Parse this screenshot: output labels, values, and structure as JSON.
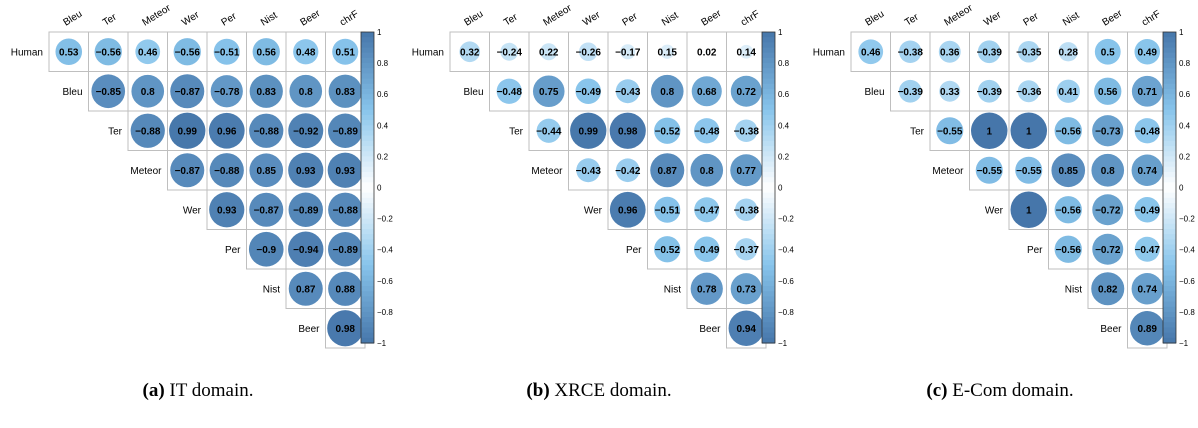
{
  "chart_data": [
    {
      "type": "heatmap",
      "shape": "upper-triangular correlation matrix (circle glyphs)",
      "rows": [
        "Human",
        "Bleu",
        "Ter",
        "Meteor",
        "Wer",
        "Per",
        "Nist",
        "Beer"
      ],
      "columns": [
        "Bleu",
        "Ter",
        "Meteor",
        "Wer",
        "Per",
        "Nist",
        "Beer",
        "chrF"
      ],
      "values": [
        [
          0.53,
          -0.56,
          0.46,
          -0.56,
          -0.51,
          0.56,
          0.48,
          0.51
        ],
        [
          -0.85,
          0.8,
          -0.87,
          -0.78,
          0.83,
          0.8,
          0.83
        ],
        [
          -0.88,
          0.99,
          0.96,
          -0.88,
          -0.92,
          -0.89
        ],
        [
          -0.87,
          -0.88,
          0.85,
          0.93,
          0.93
        ],
        [
          0.93,
          -0.87,
          -0.89,
          -0.88
        ],
        [
          -0.9,
          -0.94,
          -0.89
        ],
        [
          0.87,
          0.88
        ],
        [
          0.98
        ]
      ],
      "colorbar_ticks": [
        "1",
        "0.8",
        "0.6",
        "0.4",
        "0.2",
        "0",
        "−0.2",
        "−0.4",
        "−0.6",
        "−0.8",
        "−1"
      ],
      "range": [
        -1,
        1
      ],
      "caption_label": "(a)",
      "caption_text": "IT domain."
    },
    {
      "type": "heatmap",
      "shape": "upper-triangular correlation matrix (circle glyphs)",
      "rows": [
        "Human",
        "Bleu",
        "Ter",
        "Meteor",
        "Wer",
        "Per",
        "Nist",
        "Beer"
      ],
      "columns": [
        "Bleu",
        "Ter",
        "Meteor",
        "Wer",
        "Per",
        "Nist",
        "Beer",
        "chrF"
      ],
      "values": [
        [
          0.32,
          -0.24,
          0.22,
          -0.26,
          -0.17,
          0.15,
          0.02,
          0.14
        ],
        [
          -0.48,
          0.75,
          -0.49,
          -0.43,
          0.8,
          0.68,
          0.72
        ],
        [
          -0.44,
          0.99,
          0.98,
          -0.52,
          -0.48,
          -0.38
        ],
        [
          -0.43,
          -0.42,
          0.87,
          0.8,
          0.77
        ],
        [
          0.96,
          -0.51,
          -0.47,
          -0.38
        ],
        [
          -0.52,
          -0.49,
          -0.37
        ],
        [
          0.78,
          0.73
        ],
        [
          0.94
        ]
      ],
      "colorbar_ticks": [
        "1",
        "0.8",
        "0.6",
        "0.4",
        "0.2",
        "0",
        "−0.2",
        "−0.4",
        "−0.6",
        "−0.8",
        "−1"
      ],
      "range": [
        -1,
        1
      ],
      "caption_label": "(b)",
      "caption_text": "XRCE domain."
    },
    {
      "type": "heatmap",
      "shape": "upper-triangular correlation matrix (circle glyphs)",
      "rows": [
        "Human",
        "Bleu",
        "Ter",
        "Meteor",
        "Wer",
        "Per",
        "Nist",
        "Beer"
      ],
      "columns": [
        "Bleu",
        "Ter",
        "Meteor",
        "Wer",
        "Per",
        "Nist",
        "Beer",
        "chrF"
      ],
      "values": [
        [
          0.46,
          -0.38,
          0.36,
          -0.39,
          -0.35,
          0.28,
          0.5,
          0.49
        ],
        [
          -0.39,
          0.33,
          -0.39,
          -0.36,
          0.41,
          0.56,
          0.71
        ],
        [
          -0.55,
          1,
          1,
          -0.56,
          -0.73,
          -0.48
        ],
        [
          -0.55,
          -0.55,
          0.85,
          0.8,
          0.74
        ],
        [
          1,
          -0.56,
          -0.72,
          -0.49
        ],
        [
          -0.56,
          -0.72,
          -0.47
        ],
        [
          0.82,
          0.74
        ],
        [
          0.89
        ]
      ],
      "colorbar_ticks": [
        "1",
        "0.8",
        "0.6",
        "0.4",
        "0.2",
        "0",
        "−0.2",
        "−0.4",
        "−0.6",
        "−0.8",
        "−1"
      ],
      "range": [
        -1,
        1
      ],
      "caption_label": "(c)",
      "caption_text": "E-Com domain."
    }
  ]
}
